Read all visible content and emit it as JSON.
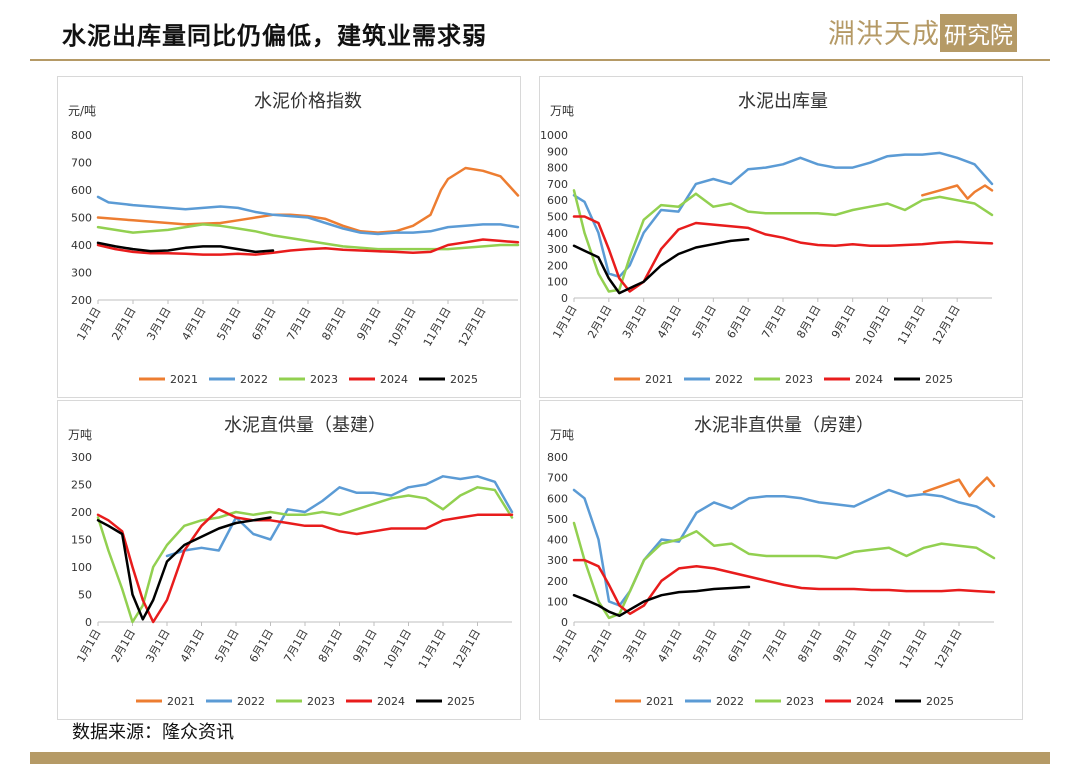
{
  "header": {
    "title": "水泥出库量同比仍偏低，建筑业需求弱",
    "logo_main": "淵洪天成",
    "logo_box": "研究院"
  },
  "footer": {
    "source": "数据来源：隆众资讯"
  },
  "legend_labels": [
    "2021",
    "2022",
    "2023",
    "2024",
    "2025"
  ],
  "colors": {
    "2021": "#ed7d31",
    "2022": "#5b9bd5",
    "2023": "#92d050",
    "2024": "#e81c1c",
    "2025": "#000000"
  },
  "chart_data": [
    {
      "type": "line",
      "title": "水泥价格指数",
      "ylabel": "元/吨",
      "ylim": [
        200,
        800
      ],
      "yticks": [
        200,
        300,
        400,
        500,
        600,
        700,
        800
      ],
      "xlim": [
        0,
        12
      ],
      "xticks": [
        0,
        1,
        2,
        3,
        4,
        5,
        6,
        7,
        8,
        9,
        10,
        11
      ],
      "xticklabels": [
        "1月1日",
        "2月1日",
        "3月1日",
        "4月1日",
        "5月1日",
        "6月1日",
        "7月1日",
        "8月1日",
        "9月1日",
        "10月1日",
        "11月1日",
        "12月1日"
      ],
      "legend": "bottom",
      "series": [
        {
          "name": "2021",
          "x": [
            0,
            1,
            2,
            2.5,
            3,
            3.5,
            4,
            4.5,
            5,
            5.5,
            6,
            6.5,
            7,
            7.5,
            8,
            8.5,
            9,
            9.5,
            9.8,
            10,
            10.5,
            11,
            11.5,
            12
          ],
          "y": [
            500,
            490,
            480,
            475,
            478,
            480,
            490,
            500,
            510,
            510,
            505,
            495,
            470,
            450,
            445,
            450,
            470,
            510,
            600,
            640,
            680,
            670,
            650,
            580
          ]
        },
        {
          "name": "2022",
          "x": [
            0,
            0.3,
            1,
            1.5,
            2,
            2.5,
            3,
            3.5,
            4,
            4.5,
            5,
            5.5,
            6,
            6.5,
            7,
            7.5,
            8,
            8.5,
            9,
            9.5,
            10,
            10.5,
            11,
            11.5,
            12
          ],
          "y": [
            575,
            555,
            545,
            540,
            535,
            530,
            535,
            540,
            535,
            520,
            510,
            505,
            500,
            480,
            460,
            445,
            440,
            445,
            445,
            450,
            465,
            470,
            475,
            475,
            465
          ]
        },
        {
          "name": "2023",
          "x": [
            0,
            0.5,
            1,
            1.5,
            2,
            2.5,
            3,
            3.5,
            4,
            4.5,
            5,
            5.5,
            6,
            6.5,
            7,
            7.5,
            8,
            8.5,
            9,
            9.5,
            10,
            10.5,
            11,
            11.5,
            12
          ],
          "y": [
            465,
            455,
            445,
            450,
            455,
            465,
            475,
            470,
            460,
            450,
            435,
            425,
            415,
            405,
            395,
            390,
            385,
            385,
            385,
            385,
            385,
            390,
            395,
            400,
            400
          ]
        },
        {
          "name": "2024",
          "x": [
            0,
            0.5,
            1,
            1.5,
            2,
            2.5,
            3,
            3.5,
            4,
            4.5,
            5,
            5.5,
            6,
            6.5,
            7,
            7.5,
            8,
            8.5,
            9,
            9.5,
            10,
            10.5,
            11,
            11.5,
            12
          ],
          "y": [
            400,
            385,
            375,
            370,
            370,
            368,
            365,
            365,
            368,
            365,
            372,
            380,
            385,
            388,
            383,
            380,
            377,
            375,
            372,
            375,
            400,
            410,
            420,
            415,
            410
          ]
        },
        {
          "name": "2025",
          "x": [
            0,
            0.5,
            1,
            1.5,
            2,
            2.5,
            3,
            3.5,
            4,
            4.5,
            5
          ],
          "y": [
            408,
            395,
            385,
            378,
            380,
            390,
            395,
            395,
            385,
            375,
            380
          ]
        }
      ]
    },
    {
      "type": "line",
      "title": "水泥出库量",
      "ylabel": "万吨",
      "ylim": [
        0,
        1000
      ],
      "yticks": [
        0,
        100,
        200,
        300,
        400,
        500,
        600,
        700,
        800,
        900,
        1000
      ],
      "xlim": [
        0,
        12
      ],
      "xticks": [
        0,
        1,
        2,
        3,
        4,
        5,
        6,
        7,
        8,
        9,
        10,
        11
      ],
      "xticklabels": [
        "1月1日",
        "2月1日",
        "3月1日",
        "4月1日",
        "5月1日",
        "6月1日",
        "7月1日",
        "8月1日",
        "9月1日",
        "10月1日",
        "11月1日",
        "12月1日"
      ],
      "legend": "bottom",
      "series": [
        {
          "name": "2021",
          "x": [
            10,
            10.5,
            11,
            11.3,
            11.5,
            11.8,
            12
          ],
          "y": [
            630,
            660,
            690,
            610,
            650,
            690,
            660
          ]
        },
        {
          "name": "2022",
          "x": [
            0,
            0.3,
            0.7,
            1,
            1.3,
            1.6,
            2,
            2.5,
            3,
            3.5,
            4,
            4.5,
            5,
            5.5,
            6,
            6.5,
            7,
            7.5,
            8,
            8.5,
            9,
            9.5,
            10,
            10.5,
            11,
            11.5,
            12
          ],
          "y": [
            630,
            590,
            400,
            150,
            130,
            200,
            400,
            540,
            530,
            700,
            730,
            700,
            790,
            800,
            820,
            860,
            820,
            800,
            800,
            830,
            870,
            880,
            880,
            890,
            860,
            820,
            700
          ]
        },
        {
          "name": "2023",
          "x": [
            0,
            0.3,
            0.7,
            1,
            1.3,
            1.6,
            2,
            2.5,
            3,
            3.5,
            4,
            4.5,
            5,
            5.5,
            6,
            6.5,
            7,
            7.5,
            8,
            8.5,
            9,
            9.5,
            10,
            10.5,
            11,
            11.5,
            12
          ],
          "y": [
            660,
            400,
            150,
            40,
            50,
            250,
            480,
            570,
            560,
            640,
            560,
            580,
            530,
            520,
            520,
            520,
            520,
            510,
            540,
            560,
            580,
            540,
            600,
            620,
            600,
            580,
            510
          ]
        },
        {
          "name": "2024",
          "x": [
            0,
            0.3,
            0.7,
            1,
            1.3,
            1.6,
            2,
            2.5,
            3,
            3.5,
            4,
            4.5,
            5,
            5.5,
            6,
            6.5,
            7,
            7.5,
            8,
            8.5,
            9,
            9.5,
            10,
            10.5,
            11,
            11.5,
            12
          ],
          "y": [
            500,
            500,
            460,
            300,
            120,
            40,
            100,
            300,
            420,
            460,
            450,
            440,
            430,
            390,
            370,
            340,
            325,
            320,
            330,
            320,
            320,
            325,
            330,
            340,
            345,
            340,
            335
          ]
        },
        {
          "name": "2025",
          "x": [
            0,
            0.3,
            0.7,
            1,
            1.3,
            1.6,
            2,
            2.5,
            3,
            3.5,
            4,
            4.5,
            5
          ],
          "y": [
            320,
            290,
            250,
            120,
            30,
            60,
            100,
            200,
            270,
            310,
            330,
            350,
            360
          ]
        }
      ]
    },
    {
      "type": "line",
      "title": "水泥直供量（基建）",
      "ylabel": "万吨",
      "ylim": [
        0,
        300
      ],
      "yticks": [
        0,
        50,
        100,
        150,
        200,
        250,
        300
      ],
      "xlim": [
        0,
        12
      ],
      "xticks": [
        0,
        1,
        2,
        3,
        4,
        5,
        6,
        7,
        8,
        9,
        10,
        11
      ],
      "xticklabels": [
        "1月1日",
        "2月1日",
        "3月1日",
        "4月1日",
        "5月1日",
        "6月1日",
        "7月1日",
        "8月1日",
        "9月1日",
        "10月1日",
        "11月1日",
        "12月1日"
      ],
      "legend": "bottom",
      "series": [
        {
          "name": "2021",
          "x": [],
          "y": []
        },
        {
          "name": "2022",
          "x": [
            2,
            2.5,
            3,
            3.5,
            4,
            4.5,
            5,
            5.5,
            6,
            6.5,
            7,
            7.5,
            8,
            8.5,
            9,
            9.5,
            10,
            10.5,
            11,
            11.5,
            12
          ],
          "y": [
            120,
            130,
            135,
            130,
            190,
            160,
            150,
            205,
            200,
            220,
            245,
            235,
            235,
            230,
            245,
            250,
            265,
            260,
            265,
            255,
            200
          ]
        },
        {
          "name": "2023",
          "x": [
            0,
            0.3,
            0.7,
            1,
            1.3,
            1.6,
            2,
            2.5,
            3,
            3.5,
            4,
            4.5,
            5,
            5.5,
            6,
            6.5,
            7,
            7.5,
            8,
            8.5,
            9,
            9.5,
            10,
            10.5,
            11,
            11.5,
            12
          ],
          "y": [
            190,
            130,
            60,
            0,
            30,
            100,
            140,
            175,
            185,
            190,
            200,
            195,
            200,
            195,
            195,
            200,
            195,
            205,
            215,
            225,
            230,
            225,
            205,
            230,
            245,
            240,
            190
          ]
        },
        {
          "name": "2024",
          "x": [
            0,
            0.3,
            0.7,
            1,
            1.3,
            1.6,
            2,
            2.5,
            3,
            3.5,
            4,
            4.5,
            5,
            5.5,
            6,
            6.5,
            7,
            7.5,
            8,
            8.5,
            9,
            9.5,
            10,
            10.5,
            11,
            11.5,
            12
          ],
          "y": [
            195,
            185,
            165,
            100,
            40,
            0,
            40,
            130,
            175,
            205,
            190,
            185,
            185,
            180,
            175,
            175,
            165,
            160,
            165,
            170,
            170,
            170,
            185,
            190,
            195,
            195,
            195
          ]
        },
        {
          "name": "2025",
          "x": [
            0,
            0.3,
            0.7,
            1,
            1.3,
            1.6,
            2,
            2.5,
            3,
            3.5,
            4,
            4.5,
            5
          ],
          "y": [
            185,
            175,
            160,
            50,
            5,
            40,
            110,
            140,
            155,
            170,
            180,
            185,
            190
          ]
        }
      ]
    },
    {
      "type": "line",
      "title": "水泥非直供量（房建）",
      "ylabel": "万吨",
      "ylim": [
        0,
        800
      ],
      "yticks": [
        0,
        100,
        200,
        300,
        400,
        500,
        600,
        700,
        800
      ],
      "xlim": [
        0,
        12
      ],
      "xticks": [
        0,
        1,
        2,
        3,
        4,
        5,
        6,
        7,
        8,
        9,
        10,
        11
      ],
      "xticklabels": [
        "1月1日",
        "2月1日",
        "3月1日",
        "4月1日",
        "5月1日",
        "6月1日",
        "7月1日",
        "8月1日",
        "9月1日",
        "10月1日",
        "11月1日",
        "12月1日"
      ],
      "legend": "bottom",
      "series": [
        {
          "name": "2021",
          "x": [
            10,
            10.5,
            11,
            11.3,
            11.5,
            11.8,
            12
          ],
          "y": [
            630,
            660,
            690,
            610,
            650,
            700,
            660
          ]
        },
        {
          "name": "2022",
          "x": [
            0,
            0.3,
            0.7,
            1,
            1.3,
            1.6,
            2,
            2.5,
            3,
            3.5,
            4,
            4.5,
            5,
            5.5,
            6,
            6.5,
            7,
            7.5,
            8,
            8.5,
            9,
            9.5,
            10,
            10.5,
            11,
            11.5,
            12
          ],
          "y": [
            640,
            600,
            400,
            100,
            80,
            150,
            300,
            400,
            390,
            530,
            580,
            550,
            600,
            610,
            610,
            600,
            580,
            570,
            560,
            600,
            640,
            610,
            620,
            610,
            580,
            560,
            510
          ]
        },
        {
          "name": "2023",
          "x": [
            0,
            0.3,
            0.7,
            1,
            1.3,
            1.6,
            2,
            2.5,
            3,
            3.5,
            4,
            4.5,
            5,
            5.5,
            6,
            6.5,
            7,
            7.5,
            8,
            8.5,
            9,
            9.5,
            10,
            10.5,
            11,
            11.5,
            12
          ],
          "y": [
            480,
            300,
            100,
            20,
            40,
            150,
            300,
            380,
            400,
            440,
            370,
            380,
            330,
            320,
            320,
            320,
            320,
            310,
            340,
            350,
            360,
            320,
            360,
            380,
            370,
            360,
            310
          ]
        },
        {
          "name": "2024",
          "x": [
            0,
            0.3,
            0.7,
            1,
            1.3,
            1.6,
            2,
            2.5,
            3,
            3.5,
            4,
            4.5,
            5,
            5.5,
            6,
            6.5,
            7,
            7.5,
            8,
            8.5,
            9,
            9.5,
            10,
            10.5,
            11,
            11.5,
            12
          ],
          "y": [
            300,
            300,
            270,
            180,
            80,
            40,
            80,
            200,
            260,
            270,
            260,
            240,
            220,
            200,
            180,
            165,
            160,
            160,
            160,
            155,
            155,
            150,
            150,
            150,
            155,
            150,
            145
          ]
        },
        {
          "name": "2025",
          "x": [
            0,
            0.3,
            0.7,
            1,
            1.3,
            1.6,
            2,
            2.5,
            3,
            3.5,
            4,
            4.5,
            5
          ],
          "y": [
            130,
            110,
            80,
            50,
            30,
            60,
            100,
            130,
            145,
            150,
            160,
            165,
            170
          ]
        }
      ]
    }
  ]
}
